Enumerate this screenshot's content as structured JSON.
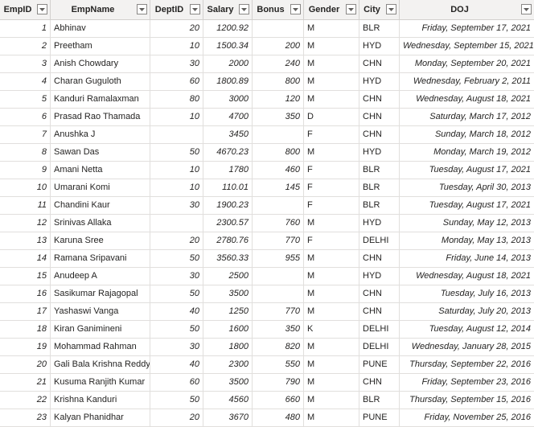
{
  "columns": [
    "EmpID",
    "EmpName",
    "DeptID",
    "Salary",
    "Bonus",
    "Gender",
    "City",
    "DOJ"
  ],
  "rows": [
    [
      "1",
      "Abhinav",
      "20",
      "1200.92",
      "",
      "M",
      "BLR",
      "Friday, September 17, 2021"
    ],
    [
      "2",
      "Preetham",
      "10",
      "1500.34",
      "200",
      "M",
      "HYD",
      "Wednesday, September 15, 2021"
    ],
    [
      "3",
      "Anish Chowdary",
      "30",
      "2000",
      "240",
      "M",
      "CHN",
      "Monday, September 20, 2021"
    ],
    [
      "4",
      "Charan Guguloth",
      "60",
      "1800.89",
      "800",
      "M",
      "HYD",
      "Wednesday, February 2, 2011"
    ],
    [
      "5",
      "Kanduri Ramalaxman",
      "80",
      "3000",
      "120",
      "M",
      "CHN",
      "Wednesday, August 18, 2021"
    ],
    [
      "6",
      "Prasad Rao Thamada",
      "10",
      "4700",
      "350",
      "D",
      "CHN",
      "Saturday, March 17, 2012"
    ],
    [
      "7",
      "Anushka J",
      "",
      "3450",
      "",
      "F",
      "CHN",
      "Sunday, March 18, 2012"
    ],
    [
      "8",
      "Sawan Das",
      "50",
      "4670.23",
      "800",
      "M",
      "HYD",
      "Monday, March 19, 2012"
    ],
    [
      "9",
      "Amani Netta",
      "10",
      "1780",
      "460",
      "F",
      "BLR",
      "Tuesday, August 17, 2021"
    ],
    [
      "10",
      "Umarani Komi",
      "10",
      "110.01",
      "145",
      "F",
      "BLR",
      "Tuesday, April 30, 2013"
    ],
    [
      "11",
      "Chandini Kaur",
      "30",
      "1900.23",
      "",
      "F",
      "BLR",
      "Tuesday, August 17, 2021"
    ],
    [
      "12",
      "Srinivas Allaka",
      "",
      "2300.57",
      "760",
      "M",
      "HYD",
      "Sunday, May 12, 2013"
    ],
    [
      "13",
      "Karuna Sree",
      "20",
      "2780.76",
      "770",
      "F",
      "DELHI",
      "Monday, May 13, 2013"
    ],
    [
      "14",
      "Ramana Sripavani",
      "50",
      "3560.33",
      "955",
      "M",
      "CHN",
      "Friday, June 14, 2013"
    ],
    [
      "15",
      "Anudeep A",
      "30",
      "2500",
      "",
      "M",
      "HYD",
      "Wednesday, August 18, 2021"
    ],
    [
      "16",
      "Sasikumar Rajagopal",
      "50",
      "3500",
      "",
      "M",
      "CHN",
      "Tuesday, July 16, 2013"
    ],
    [
      "17",
      "Yashaswi Vanga",
      "40",
      "1250",
      "770",
      "M",
      "CHN",
      "Saturday, July 20, 2013"
    ],
    [
      "18",
      "Kiran Ganimineni",
      "50",
      "1600",
      "350",
      "K",
      "DELHI",
      "Tuesday, August 12, 2014"
    ],
    [
      "19",
      "Mohammad Rahman",
      "30",
      "1800",
      "820",
      "M",
      "DELHI",
      "Wednesday, January 28, 2015"
    ],
    [
      "20",
      "Gali Bala Krishna Reddy",
      "40",
      "2300",
      "550",
      "M",
      "PUNE",
      "Thursday, September 22, 2016"
    ],
    [
      "21",
      "Kusuma Ranjith Kumar",
      "60",
      "3500",
      "790",
      "M",
      "CHN",
      "Friday, September 23, 2016"
    ],
    [
      "22",
      "Krishna Kanduri",
      "50",
      "4560",
      "660",
      "M",
      "BLR",
      "Thursday, September 15, 2016"
    ],
    [
      "23",
      "Kalyan Phanidhar",
      "20",
      "3670",
      "480",
      "M",
      "PUNE",
      "Friday, November 25, 2016"
    ]
  ]
}
